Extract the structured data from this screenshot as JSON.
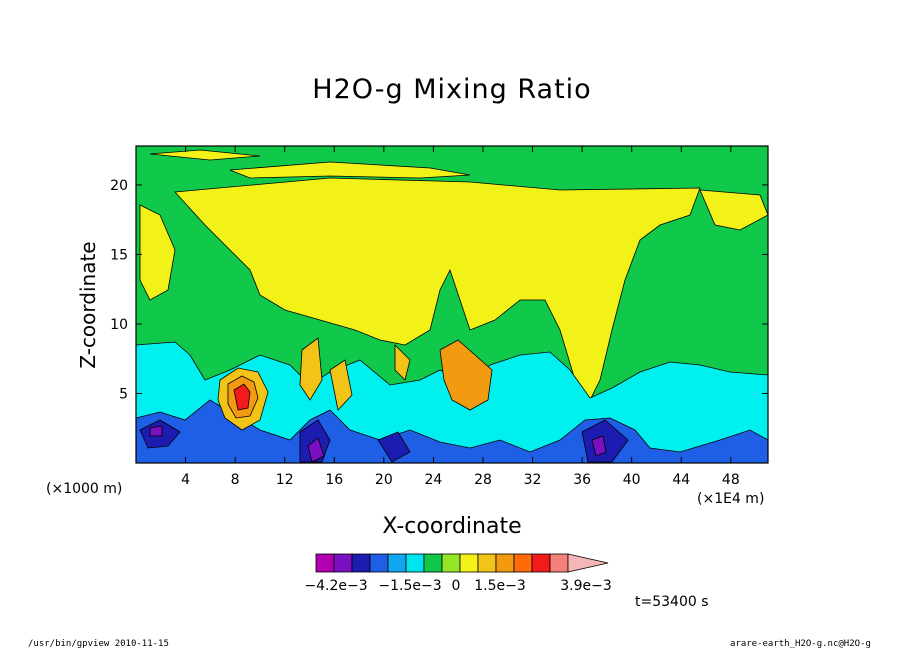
{
  "chart_data": {
    "type": "heatmap",
    "title": "H2O-g Mixing Ratio",
    "xlabel": "X-coordinate",
    "ylabel": "Z-coordinate",
    "x_unit_left": "(×1000 m)",
    "x_unit_right": "(×1E4 m)",
    "xlim": [
      0,
      51
    ],
    "ylim": [
      0,
      22.8
    ],
    "x_ticks": [
      4,
      8,
      12,
      16,
      20,
      24,
      28,
      32,
      36,
      40,
      44,
      48
    ],
    "y_ticks": [
      5,
      10,
      15,
      20
    ],
    "time_label": "t=53400 s",
    "colorbar": {
      "labels": [
        "−4.2e−3",
        "−1.5e−3",
        "0",
        "1.5e−3",
        "3.9e−3"
      ],
      "colors": [
        "#b000b0",
        "#7a10c0",
        "#1c1cb0",
        "#1f5fe6",
        "#10a6f0",
        "#00e4f0",
        "#10c84a",
        "#96e628",
        "#f2f218",
        "#f2c418",
        "#f29a10",
        "#ff6a0a",
        "#f21a1a",
        "#f5807a",
        "#f5b6b6"
      ],
      "background_level": "#00f0f0"
    },
    "regions": [
      {
        "name": "upper-green",
        "color": "#10c84a"
      },
      {
        "name": "upper-yellow",
        "color": "#f2f218"
      },
      {
        "name": "low-level-cyan",
        "color": "#00f0f0"
      },
      {
        "name": "surface-blue",
        "color": "#1f5fe6"
      },
      {
        "name": "convective-orange",
        "color": "#f29a10"
      },
      {
        "name": "core-red",
        "color": "#f21a1a"
      }
    ]
  },
  "footer": {
    "left": "/usr/bin/gpview  2010-11-15",
    "right": "arare-earth_H2O-g.nc@H2O-g"
  }
}
